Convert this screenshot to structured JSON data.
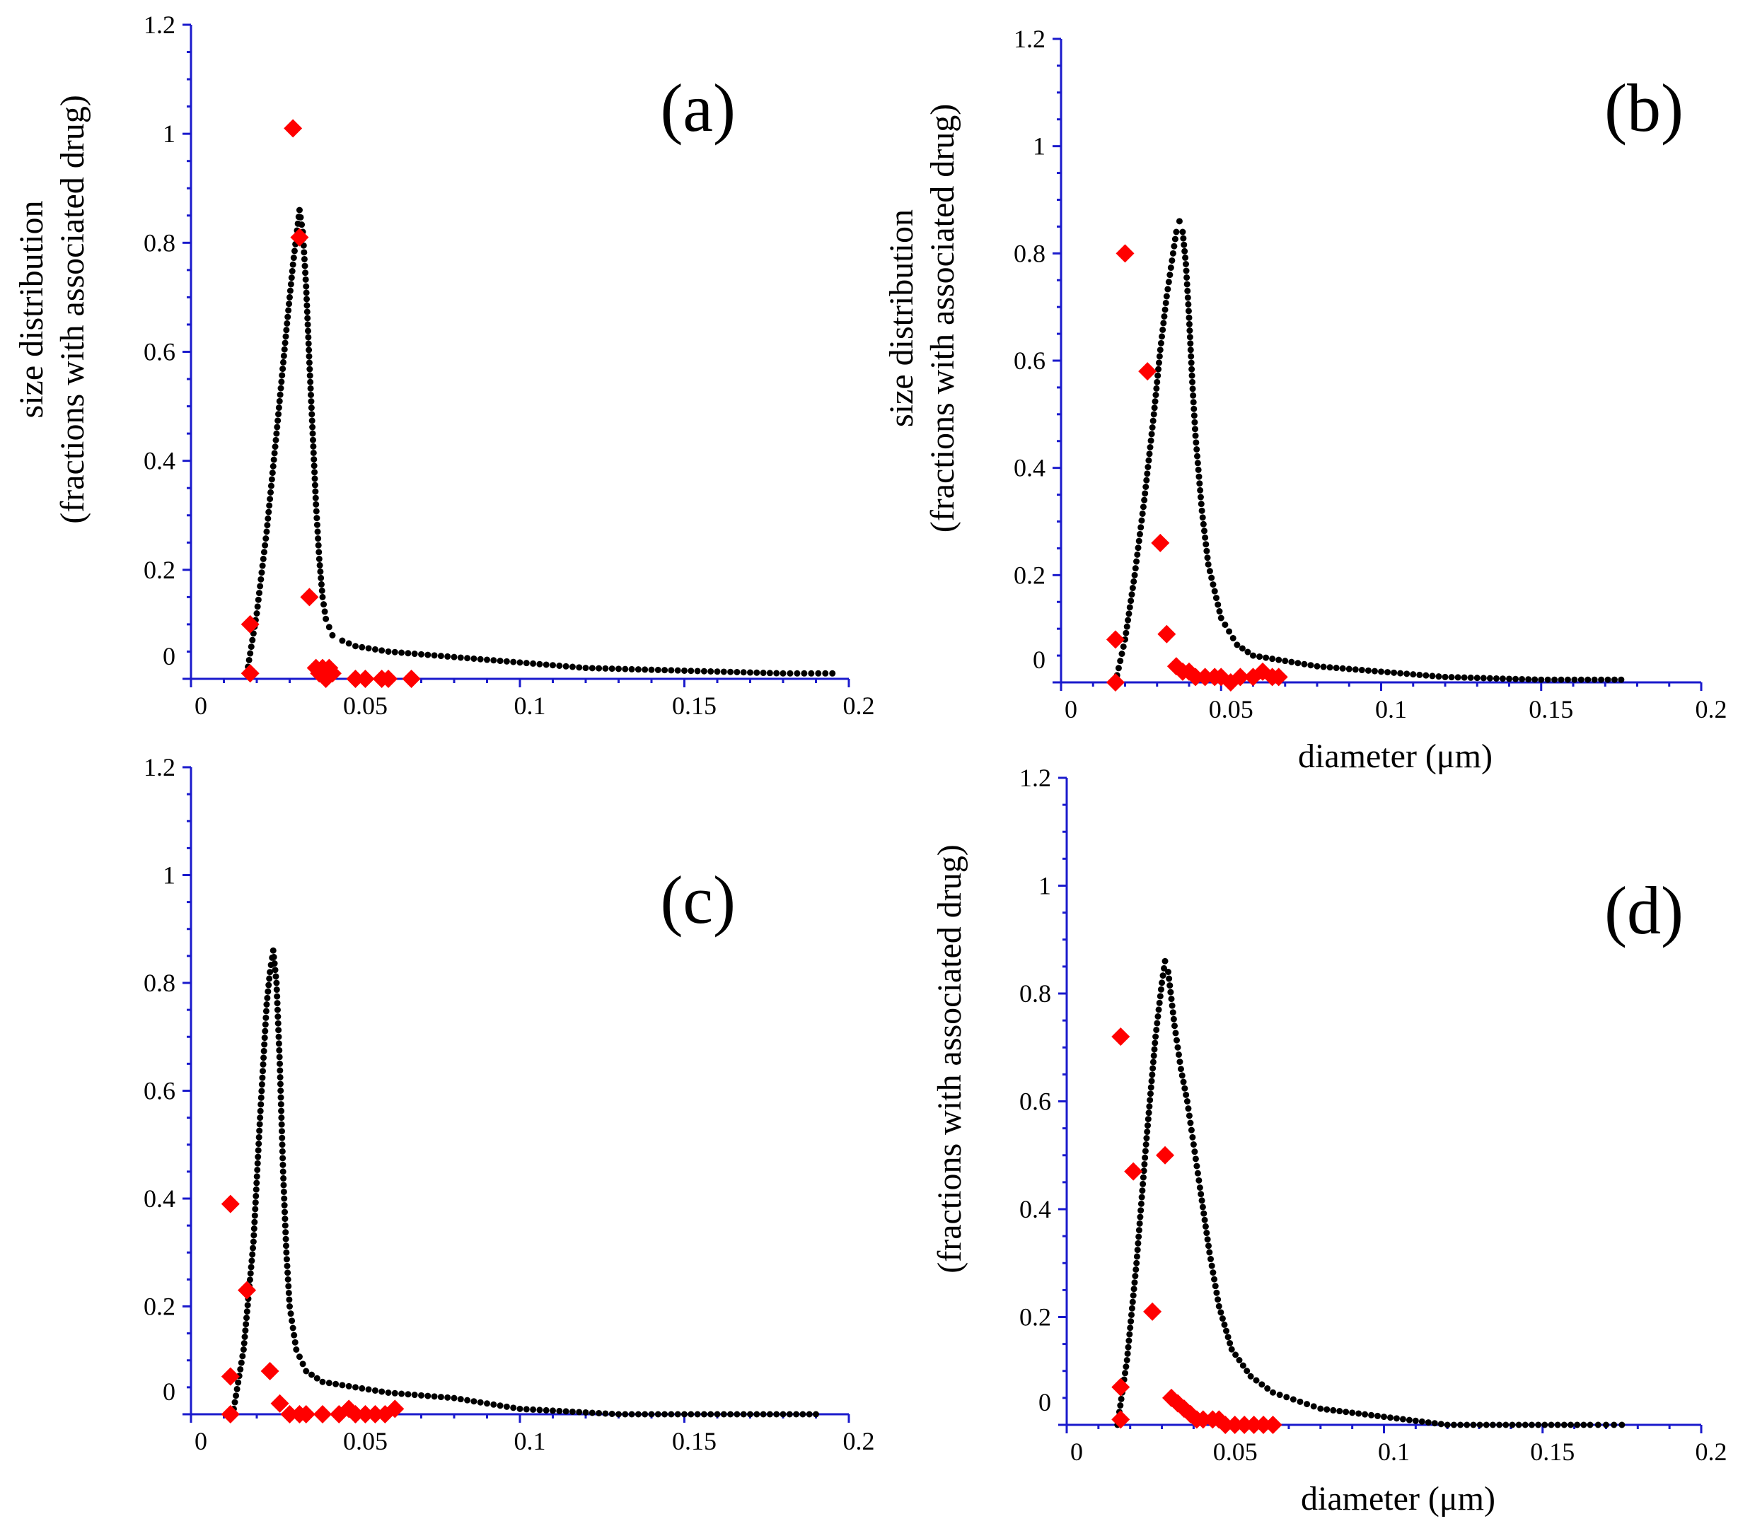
{
  "colors": {
    "axis": "#1a1acc",
    "distribution": "#000000",
    "drug_marker": "#ff0000"
  },
  "chart_data": [
    {
      "type": "scatter",
      "panel_label": "(a)",
      "xlabel": "",
      "ylabel_line1": "size distribution",
      "ylabel_line2": "(fractions with associated drug)",
      "xlim": [
        0,
        0.2
      ],
      "ylim": [
        0,
        1.2
      ],
      "x_ticks": [
        "0",
        "0.05",
        "0.1",
        "0.15",
        "0.2"
      ],
      "y_ticks": [
        "0",
        "0.2",
        "0.4",
        "0.6",
        "0.8",
        "1",
        "1.2"
      ],
      "series": [
        {
          "marker": "dot",
          "x": [
            0.017,
            0.02,
            0.023,
            0.026,
            0.029,
            0.031,
            0.033,
            0.034,
            0.035,
            0.036,
            0.037,
            0.038,
            0.039,
            0.04,
            0.041,
            0.043,
            0.046,
            0.05,
            0.06,
            0.08,
            0.1,
            0.12,
            0.15,
            0.18,
            0.195
          ],
          "y": [
            0.01,
            0.12,
            0.27,
            0.45,
            0.64,
            0.76,
            0.86,
            0.82,
            0.72,
            0.58,
            0.45,
            0.32,
            0.22,
            0.15,
            0.11,
            0.08,
            0.07,
            0.06,
            0.05,
            0.04,
            0.03,
            0.02,
            0.015,
            0.01,
            0.01
          ]
        },
        {
          "marker": "diamond",
          "x": [
            0.018,
            0.018,
            0.031,
            0.033,
            0.036,
            0.038,
            0.039,
            0.04,
            0.041,
            0.042,
            0.043,
            0.05,
            0.053,
            0.058,
            0.06,
            0.067
          ],
          "y": [
            0.01,
            0.1,
            1.01,
            0.81,
            0.15,
            0.02,
            0.01,
            0.02,
            0.0,
            0.02,
            0.01,
            0.0,
            0.0,
            0.0,
            0.0,
            0.0
          ]
        }
      ]
    },
    {
      "type": "scatter",
      "panel_label": "(b)",
      "xlabel": "diameter (μm)",
      "ylabel_line1": "size distribution",
      "ylabel_line2": "(fractions with associated drug)",
      "xlim": [
        0,
        0.2
      ],
      "ylim": [
        0,
        1.2
      ],
      "x_ticks": [
        "0",
        "0.05",
        "0.1",
        "0.15",
        "0.2"
      ],
      "y_ticks": [
        "0",
        "0.2",
        "0.4",
        "0.6",
        "0.8",
        "1",
        "1.2"
      ],
      "series": [
        {
          "marker": "dot",
          "x": [
            0.017,
            0.02,
            0.023,
            0.026,
            0.029,
            0.031,
            0.033,
            0.035,
            0.036,
            0.037,
            0.038,
            0.039,
            0.04,
            0.041,
            0.042,
            0.044,
            0.046,
            0.05,
            0.055,
            0.06,
            0.08,
            0.1,
            0.12,
            0.15,
            0.175
          ],
          "y": [
            0.0,
            0.08,
            0.2,
            0.34,
            0.5,
            0.62,
            0.72,
            0.8,
            0.84,
            0.86,
            0.84,
            0.78,
            0.68,
            0.56,
            0.46,
            0.32,
            0.22,
            0.12,
            0.07,
            0.05,
            0.03,
            0.02,
            0.01,
            0.005,
            0.005
          ]
        },
        {
          "marker": "diamond",
          "x": [
            0.017,
            0.017,
            0.02,
            0.027,
            0.031,
            0.033,
            0.036,
            0.038,
            0.04,
            0.042,
            0.045,
            0.048,
            0.05,
            0.053,
            0.056,
            0.06,
            0.063,
            0.066,
            0.068
          ],
          "y": [
            0.0,
            0.08,
            0.8,
            0.58,
            0.26,
            0.09,
            0.03,
            0.02,
            0.02,
            0.01,
            0.01,
            0.01,
            0.01,
            0.0,
            0.01,
            0.01,
            0.02,
            0.01,
            0.01
          ]
        }
      ]
    },
    {
      "type": "scatter",
      "panel_label": "(c)",
      "xlabel": "",
      "ylabel_line1": "",
      "ylabel_line2": "",
      "xlim": [
        0,
        0.2
      ],
      "ylim": [
        0,
        1.2
      ],
      "x_ticks": [
        "0",
        "0.05",
        "0.1",
        "0.15",
        "0.2"
      ],
      "y_ticks": [
        "0",
        "0.2",
        "0.4",
        "0.6",
        "0.8",
        "1",
        "1.2"
      ],
      "series": [
        {
          "marker": "dot",
          "x": [
            0.013,
            0.016,
            0.019,
            0.021,
            0.023,
            0.024,
            0.025,
            0.026,
            0.027,
            0.028,
            0.029,
            0.03,
            0.032,
            0.035,
            0.04,
            0.05,
            0.06,
            0.08,
            0.1,
            0.13,
            0.16,
            0.19
          ],
          "y": [
            0.01,
            0.12,
            0.32,
            0.55,
            0.76,
            0.82,
            0.86,
            0.8,
            0.65,
            0.45,
            0.3,
            0.2,
            0.12,
            0.08,
            0.06,
            0.05,
            0.04,
            0.03,
            0.01,
            0.0,
            0.0,
            0.0
          ]
        },
        {
          "marker": "diamond",
          "x": [
            0.012,
            0.012,
            0.012,
            0.017,
            0.024,
            0.027,
            0.03,
            0.033,
            0.035,
            0.04,
            0.045,
            0.048,
            0.05,
            0.053,
            0.056,
            0.059,
            0.062
          ],
          "y": [
            0.0,
            0.07,
            0.39,
            0.23,
            0.08,
            0.02,
            0.0,
            0.0,
            0.0,
            0.0,
            0.0,
            0.01,
            0.0,
            0.0,
            0.0,
            0.0,
            0.01
          ]
        }
      ]
    },
    {
      "type": "scatter",
      "panel_label": "(d)",
      "xlabel": "diameter (μm)",
      "ylabel_line1": "",
      "ylabel_line2": "(fractions with associated drug)",
      "xlim": [
        0,
        0.2
      ],
      "ylim": [
        0,
        1.2
      ],
      "x_ticks": [
        "0",
        "0.05",
        "0.1",
        "0.15",
        "0.2"
      ],
      "y_ticks": [
        "0",
        "0.2",
        "0.4",
        "0.6",
        "0.8",
        "1",
        "1.2"
      ],
      "series": [
        {
          "marker": "dot",
          "x": [
            0.016,
            0.019,
            0.022,
            0.025,
            0.028,
            0.03,
            0.031,
            0.032,
            0.034,
            0.036,
            0.038,
            0.04,
            0.042,
            0.045,
            0.048,
            0.052,
            0.058,
            0.065,
            0.08,
            0.1,
            0.12,
            0.165,
            0.175
          ],
          "y": [
            0.0,
            0.12,
            0.3,
            0.52,
            0.72,
            0.82,
            0.86,
            0.84,
            0.74,
            0.66,
            0.6,
            0.52,
            0.44,
            0.32,
            0.22,
            0.14,
            0.09,
            0.06,
            0.03,
            0.015,
            0.0,
            0.0,
            0.0
          ]
        },
        {
          "marker": "diamond",
          "x": [
            0.017,
            0.017,
            0.017,
            0.021,
            0.027,
            0.031,
            0.033,
            0.035,
            0.037,
            0.039,
            0.041,
            0.043,
            0.046,
            0.048,
            0.05,
            0.053,
            0.056,
            0.059,
            0.062,
            0.065
          ],
          "y": [
            0.01,
            0.07,
            0.72,
            0.47,
            0.21,
            0.5,
            0.05,
            0.04,
            0.03,
            0.02,
            0.01,
            0.01,
            0.01,
            0.01,
            0.0,
            0.0,
            0.0,
            0.0,
            0.0,
            0.0
          ]
        }
      ]
    }
  ]
}
